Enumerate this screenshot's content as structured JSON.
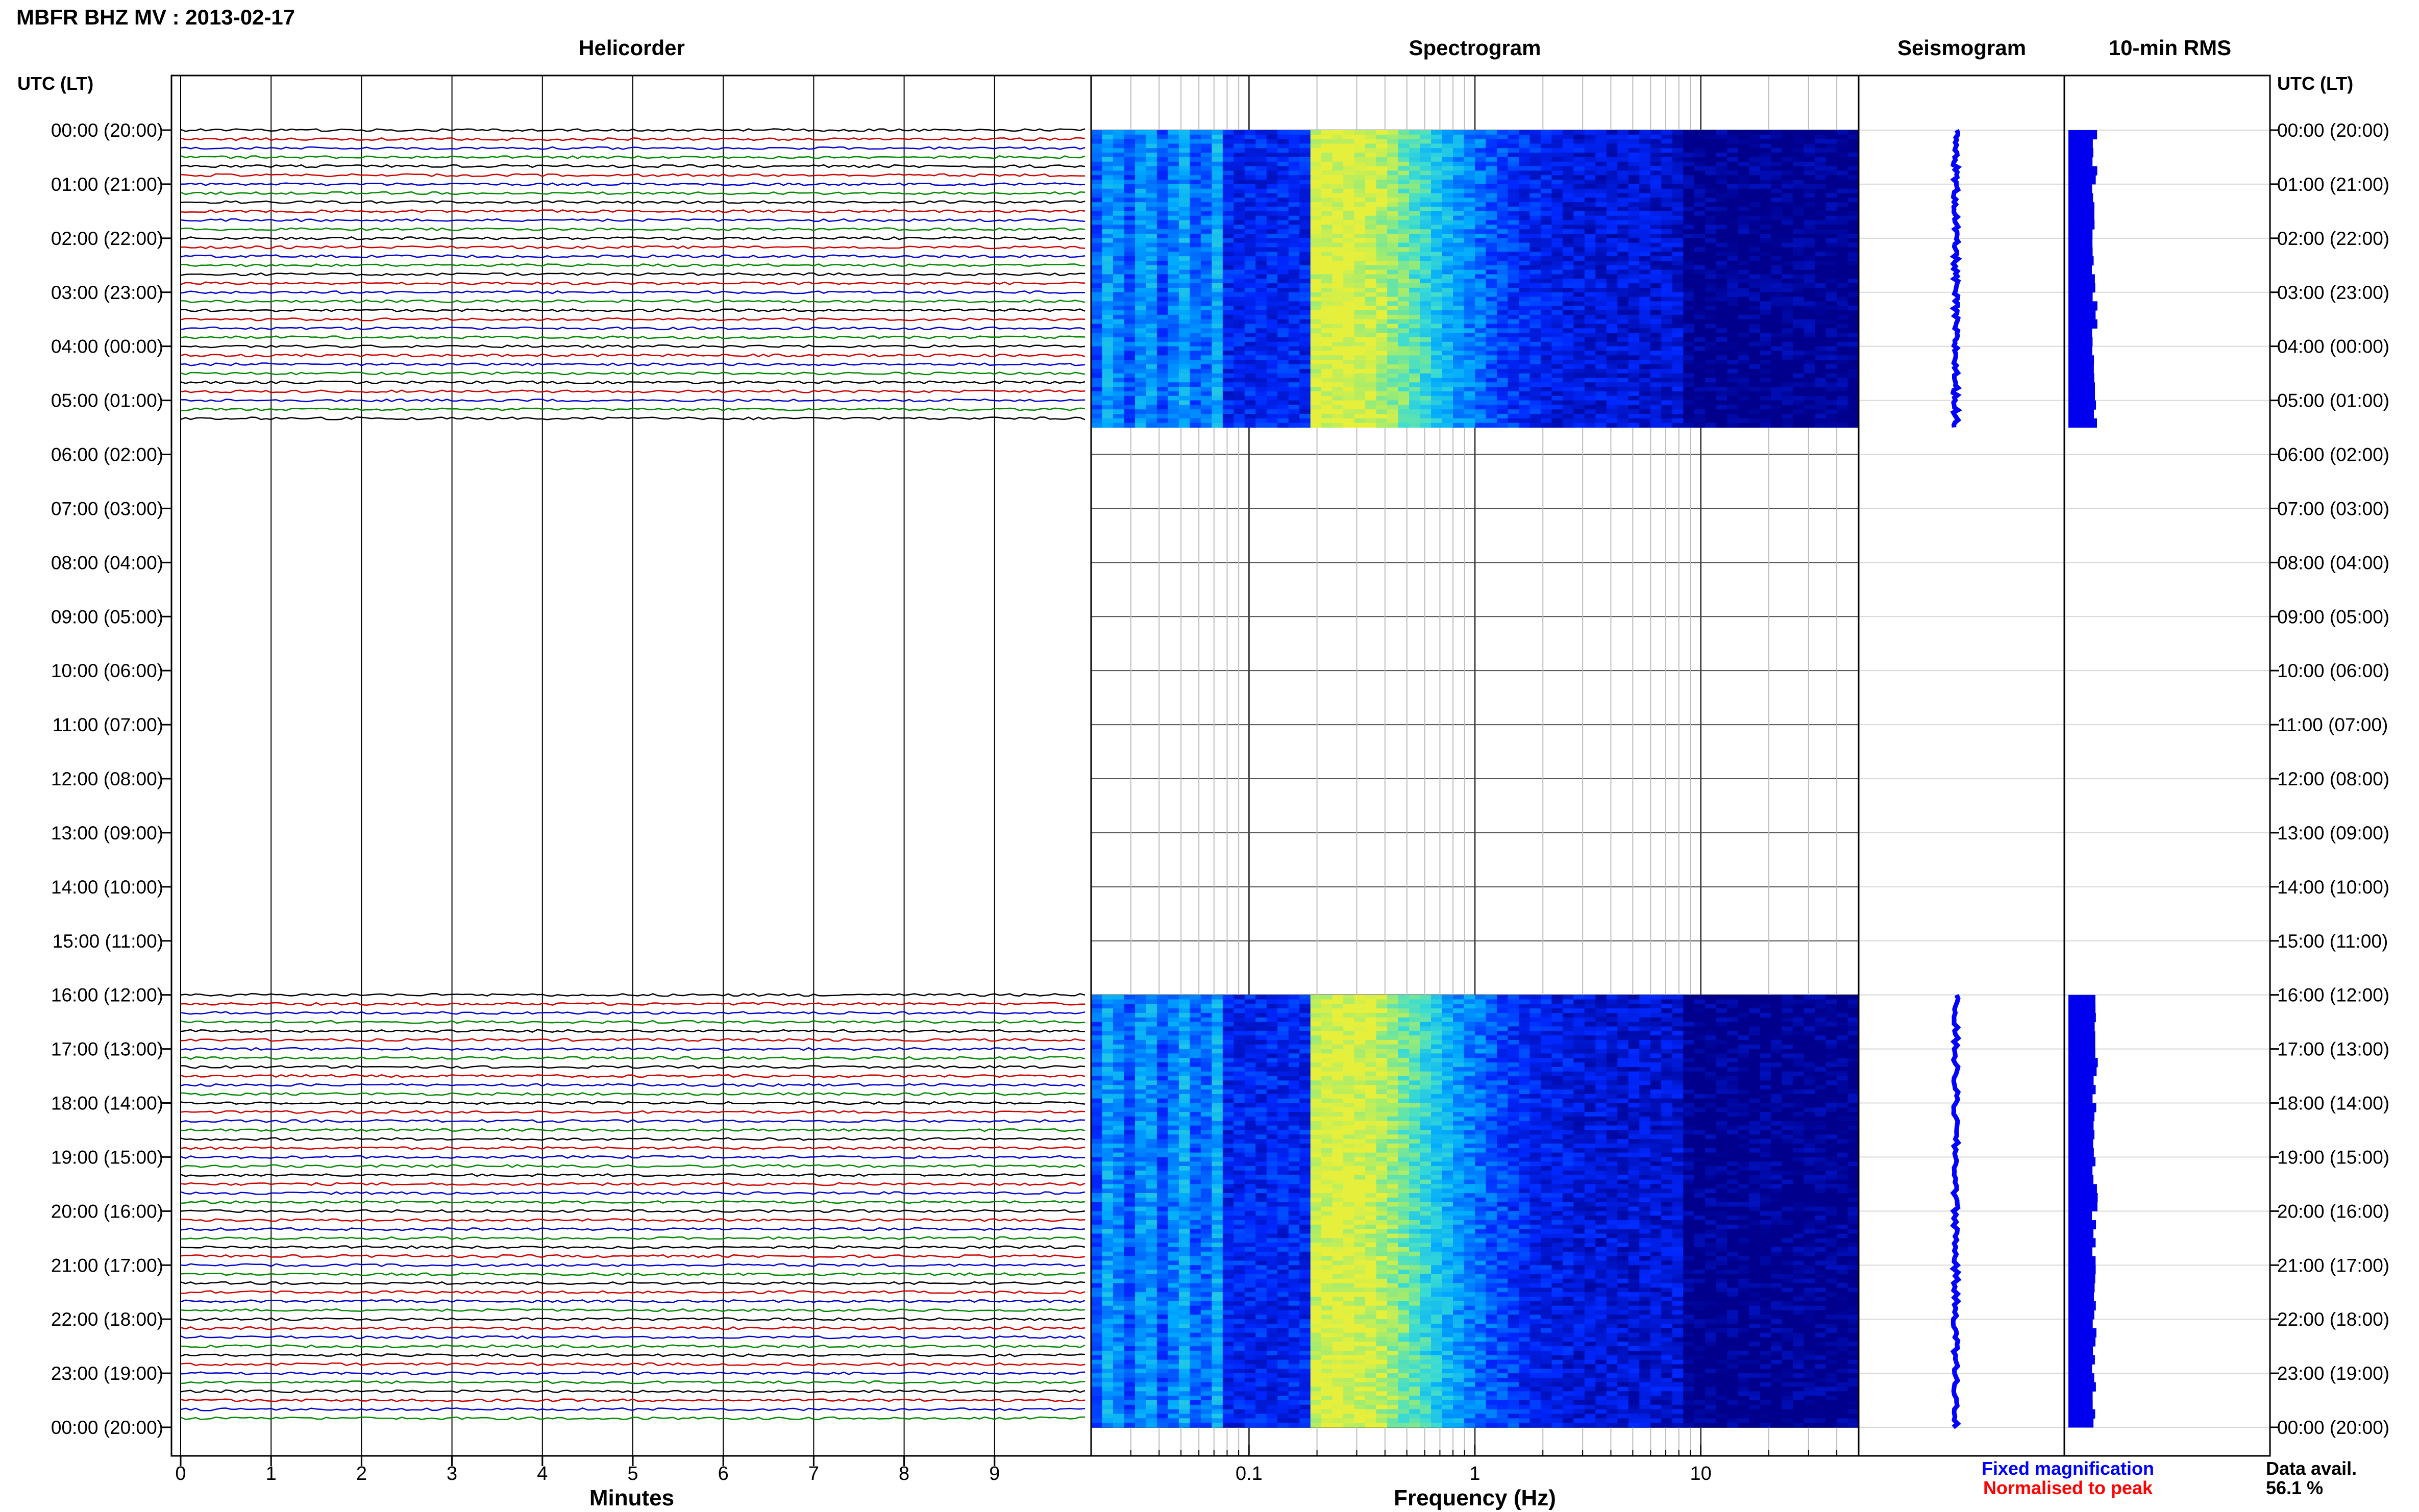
{
  "header": {
    "title": "MBFR BHZ MV : 2013-02-17",
    "time_header_left": "UTC (LT)",
    "time_header_right": "UTC (LT)"
  },
  "panels": {
    "helicorder": "Helicorder",
    "spectrogram": "Spectrogram",
    "seismogram": "Seismogram",
    "rms": "10-min RMS"
  },
  "axes": {
    "helicorder_xlabel": "Minutes",
    "spectrogram_xlabel": "Frequency (Hz)"
  },
  "legend": {
    "fixed": "Fixed magnification",
    "normalised": "Normalised to peak",
    "fixed_color": "#0000ff",
    "normalised_color": "#ff0000"
  },
  "availability": {
    "label": "Data avail.",
    "value": "56.1 %"
  },
  "colors": {
    "trace_cycle": [
      "#000000",
      "#cc0000",
      "#0000cc",
      "#008800"
    ],
    "rms_fill": "#0000ee",
    "seismogram": "#0000ff"
  },
  "chart_data": {
    "type": "heatmap",
    "time_labels": [
      "00:00 (20:00)",
      "01:00 (21:00)",
      "02:00 (22:00)",
      "03:00 (23:00)",
      "04:00 (00:00)",
      "05:00 (01:00)",
      "06:00 (02:00)",
      "07:00 (03:00)",
      "08:00 (04:00)",
      "09:00 (05:00)",
      "10:00 (06:00)",
      "11:00 (07:00)",
      "12:00 (08:00)",
      "13:00 (09:00)",
      "14:00 (10:00)",
      "15:00 (11:00)",
      "16:00 (12:00)",
      "17:00 (13:00)",
      "18:00 (14:00)",
      "19:00 (15:00)",
      "20:00 (16:00)",
      "21:00 (17:00)",
      "22:00 (18:00)",
      "23:00 (19:00)",
      "00:00 (20:00)"
    ],
    "helicorder_xticks": [
      "0",
      "1",
      "2",
      "3",
      "4",
      "5",
      "6",
      "7",
      "8",
      "9"
    ],
    "helicorder_xlim": [
      0,
      10
    ],
    "spectrogram_xticks": [
      "0.1",
      "1",
      "10"
    ],
    "spectrogram_xscale": "log",
    "spectrogram_xlim": [
      0.02,
      50
    ],
    "data_segments_utc_hours": [
      [
        0,
        5.5
      ],
      [
        16,
        24
      ]
    ],
    "traces_per_hour": 6,
    "spectral_peak_hz": 0.25
  }
}
